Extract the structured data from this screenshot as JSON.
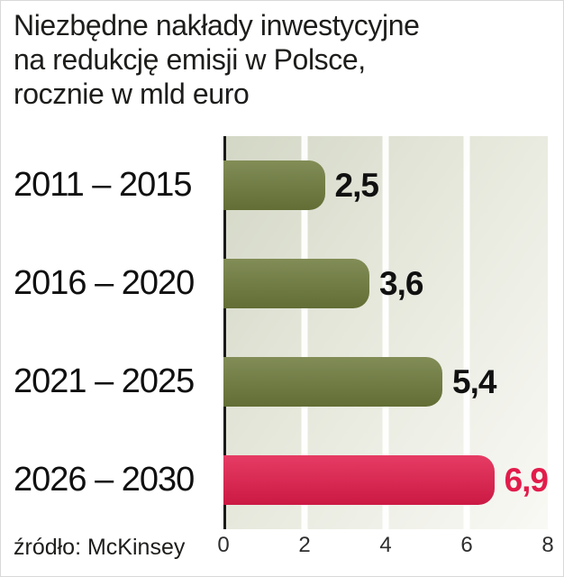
{
  "title": {
    "lines": [
      "Niezbędne nakłady inwestycyjne",
      "na redukcję emisji w Polsce,",
      "rocznie w mld euro"
    ]
  },
  "source": "źródło: McKinsey",
  "colors": {
    "bar_green": "#6d7a3b",
    "bar_red": "#e21c4b",
    "value_label_dark": "#111111",
    "value_label_red": "#e21c4b",
    "axis_line": "#1a1a1a",
    "gridline": "#ffffff",
    "plot_bg_dark": "#d3d7c5",
    "plot_bg_light": "#f9f9f5"
  },
  "chart_data": {
    "type": "bar",
    "orientation": "horizontal",
    "title": "Niezbędne nakłady inwestycyjne na redukcję emisji w Polsce, rocznie w mld euro",
    "source": "źródło: McKinsey",
    "categories": [
      "2011 – 2015",
      "2016 – 2020",
      "2021 – 2025",
      "2026 – 2030"
    ],
    "values": [
      2.5,
      3.6,
      5.4,
      6.9
    ],
    "value_labels": [
      "2,5",
      "3,6",
      "5,4",
      "6,9"
    ],
    "bar_colors": [
      "#6d7a3b",
      "#6d7a3b",
      "#6d7a3b",
      "#e21c4b"
    ],
    "value_label_colors": [
      "#111111",
      "#111111",
      "#111111",
      "#e21c4b"
    ],
    "xlim": [
      0,
      8
    ],
    "x_ticks": [
      "0",
      "2",
      "4",
      "6",
      "8"
    ],
    "grid": true,
    "legend": false
  }
}
